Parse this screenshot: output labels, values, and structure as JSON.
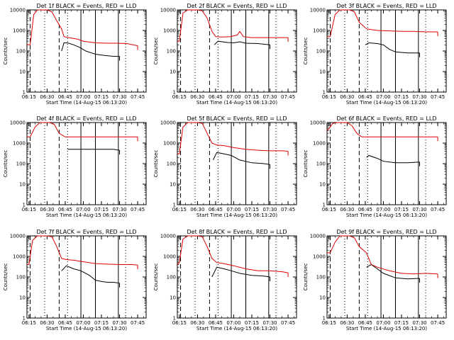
{
  "figure": {
    "x_tick_labels": [
      "06:15",
      "06:30",
      "06:45",
      "07:00",
      "07:15",
      "07:30",
      "07:45"
    ],
    "y_tick_labels": [
      "1",
      "10",
      "100",
      "1000",
      "10000"
    ],
    "ylabel": "Counts/sec",
    "xlabel": "Start Time (14-Aug-15 06:13:20)"
  },
  "colors": {
    "events": "#000000",
    "lld": "#e00000"
  },
  "chart_data": [
    {
      "type": "line",
      "title": "Det 1f BLACK = Events, RED = LLD",
      "y_scale": "log",
      "ylim": [
        1,
        10000
      ],
      "xlim": [
        "06:13:20",
        "07:52:00"
      ],
      "grid": false,
      "series": [
        {
          "name": "Events",
          "x": [
            "06:42",
            "06:44",
            "06:47",
            "06:52",
            "06:57",
            "07:02",
            "07:10",
            "07:18",
            "07:25",
            "07:30"
          ],
          "values": [
            100,
            250,
            250,
            200,
            150,
            100,
            70,
            60,
            55,
            55
          ]
        },
        {
          "name": "LLD",
          "x": [
            "06:13:20",
            "06:16",
            "06:19",
            "06:22",
            "06:26",
            "06:30",
            "06:34",
            "06:38",
            "06:42",
            "06:44",
            "06:48",
            "06:55",
            "07:00",
            "07:10",
            "07:20",
            "07:28",
            "07:36",
            "07:45"
          ],
          "values": [
            200,
            200,
            6000,
            10000,
            10000,
            10000,
            8000,
            3000,
            1200,
            500,
            450,
            380,
            300,
            250,
            240,
            240,
            230,
            180
          ]
        }
      ],
      "vlines_dashed": [
        "06:16",
        "06:40"
      ],
      "vlines_dotted": [
        "06:28",
        "06:47",
        "07:35"
      ],
      "vlines_solid": [
        "06:58",
        "07:10",
        "07:29"
      ]
    },
    {
      "type": "line",
      "title": "Det 2f BLACK = Events, RED = LLD",
      "y_scale": "log",
      "ylim": [
        1,
        10000
      ],
      "xlim": [
        "06:13:20",
        "07:52:00"
      ],
      "grid": false,
      "series": [
        {
          "name": "Events",
          "x": [
            "06:44",
            "06:47",
            "06:55",
            "07:00",
            "07:05",
            "07:10",
            "07:20",
            "07:30"
          ],
          "values": [
            200,
            300,
            260,
            250,
            280,
            240,
            230,
            200
          ]
        },
        {
          "name": "LLD",
          "x": [
            "06:13:20",
            "06:15",
            "06:18",
            "06:22",
            "06:26",
            "06:30",
            "06:34",
            "06:38",
            "06:42",
            "06:45",
            "06:50",
            "06:57",
            "07:03",
            "07:05",
            "07:08",
            "07:15",
            "07:25",
            "07:35",
            "07:45"
          ],
          "values": [
            300,
            300,
            7000,
            10000,
            10000,
            10000,
            9000,
            4000,
            900,
            500,
            480,
            500,
            600,
            900,
            500,
            450,
            450,
            450,
            450
          ]
        }
      ],
      "vlines_dashed": [
        "06:16",
        "06:40"
      ],
      "vlines_dotted": [
        "06:28",
        "06:47",
        "07:35"
      ],
      "vlines_solid": [
        "06:58",
        "07:10",
        "07:29"
      ]
    },
    {
      "type": "line",
      "title": "Det 3f BLACK = Events, RED = LLD",
      "y_scale": "log",
      "ylim": [
        1,
        10000
      ],
      "xlim": [
        "06:13:20",
        "07:52:00"
      ],
      "grid": false,
      "series": [
        {
          "name": "Events",
          "x": [
            "06:45",
            "06:48",
            "06:55",
            "07:00",
            "07:05",
            "07:10",
            "07:20",
            "07:30"
          ],
          "values": [
            200,
            250,
            230,
            200,
            120,
            90,
            80,
            80
          ]
        },
        {
          "name": "LLD",
          "x": [
            "06:13:20",
            "06:16",
            "06:20",
            "06:24",
            "06:28",
            "06:32",
            "06:36",
            "06:40",
            "06:46",
            "06:55",
            "07:05",
            "07:15",
            "07:25",
            "07:35",
            "07:45"
          ],
          "values": [
            500,
            500,
            6000,
            10000,
            10000,
            10000,
            8000,
            2500,
            1200,
            1000,
            950,
            900,
            900,
            850,
            850
          ]
        }
      ],
      "vlines_dashed": [
        "06:16",
        "06:40"
      ],
      "vlines_dotted": [
        "06:28",
        "06:47",
        "07:35"
      ],
      "vlines_solid": [
        "06:58",
        "07:10",
        "07:29"
      ]
    },
    {
      "type": "line",
      "title": "Det 4f BLACK = Events, RED = LLD",
      "y_scale": "log",
      "ylim": [
        1,
        10000
      ],
      "xlim": [
        "06:13:20",
        "07:52:00"
      ],
      "grid": false,
      "series": [
        {
          "name": "Events",
          "x": [
            "06:47",
            "06:55",
            "07:05",
            "07:15",
            "07:25",
            "07:30"
          ],
          "values": [
            500,
            500,
            500,
            500,
            500,
            450
          ]
        },
        {
          "name": "LLD",
          "x": [
            "06:13:20",
            "06:16",
            "06:20",
            "06:24",
            "06:28",
            "06:32",
            "06:36",
            "06:40",
            "06:45",
            "06:55",
            "07:10",
            "07:25",
            "07:35",
            "07:45"
          ],
          "values": [
            2000,
            2000,
            6000,
            10000,
            10000,
            10000,
            8000,
            3000,
            2000,
            2000,
            2000,
            2000,
            2000,
            2000
          ]
        }
      ],
      "vlines_dashed": [
        "06:16",
        "06:40"
      ],
      "vlines_dotted": [
        "06:28",
        "06:47",
        "07:35"
      ],
      "vlines_solid": [
        "06:58",
        "07:10",
        "07:29"
      ]
    },
    {
      "type": "line",
      "title": "Det 5f BLACK = Events, RED = LLD",
      "y_scale": "log",
      "ylim": [
        1,
        10000
      ],
      "xlim": [
        "06:13:20",
        "07:52:00"
      ],
      "grid": false,
      "series": [
        {
          "name": "Events",
          "x": [
            "06:43",
            "06:46",
            "06:52",
            "06:58",
            "07:05",
            "07:15",
            "07:25",
            "07:30"
          ],
          "values": [
            150,
            350,
            300,
            250,
            150,
            110,
            100,
            90
          ]
        },
        {
          "name": "LLD",
          "x": [
            "06:13:20",
            "06:15",
            "06:18",
            "06:22",
            "06:26",
            "06:30",
            "06:34",
            "06:38",
            "06:42",
            "06:46",
            "06:52",
            "07:00",
            "07:10",
            "07:20",
            "07:30",
            "07:40",
            "07:45"
          ],
          "values": [
            300,
            300,
            6000,
            10000,
            10000,
            10000,
            9000,
            3000,
            1000,
            800,
            750,
            600,
            500,
            450,
            420,
            420,
            400
          ]
        }
      ],
      "vlines_dashed": [
        "06:16",
        "06:40"
      ],
      "vlines_dotted": [
        "06:28",
        "06:47",
        "07:35"
      ],
      "vlines_solid": [
        "06:58",
        "07:10",
        "07:29"
      ]
    },
    {
      "type": "line",
      "title": "Det 6f BLACK = Events, RED = LLD",
      "y_scale": "log",
      "ylim": [
        1,
        10000
      ],
      "xlim": [
        "06:13:20",
        "07:52:00"
      ],
      "grid": false,
      "series": [
        {
          "name": "Events",
          "x": [
            "06:46",
            "06:48",
            "06:55",
            "07:00",
            "07:10",
            "07:20",
            "07:30"
          ],
          "values": [
            200,
            250,
            180,
            130,
            110,
            110,
            120
          ]
        },
        {
          "name": "LLD",
          "x": [
            "06:13:20",
            "06:15",
            "06:18",
            "06:22",
            "06:26",
            "06:30",
            "06:34",
            "06:38",
            "06:42",
            "06:46",
            "06:55",
            "07:10",
            "07:25",
            "07:35",
            "07:45"
          ],
          "values": [
            4000,
            5000,
            9000,
            10000,
            10000,
            10000,
            7000,
            3000,
            2000,
            2000,
            2000,
            2000,
            2000,
            2000,
            2000
          ]
        }
      ],
      "vlines_dashed": [
        "06:16",
        "06:40"
      ],
      "vlines_dotted": [
        "06:28",
        "06:47",
        "07:35"
      ],
      "vlines_solid": [
        "06:58",
        "07:10",
        "07:29"
      ]
    },
    {
      "type": "line",
      "title": "Det 7f BLACK = Events, RED = LLD",
      "y_scale": "log",
      "ylim": [
        1,
        10000
      ],
      "xlim": [
        "06:13:20",
        "07:52:00"
      ],
      "grid": false,
      "series": [
        {
          "name": "Events",
          "x": [
            "06:42",
            "06:46",
            "06:52",
            "06:58",
            "07:05",
            "07:10",
            "07:15",
            "07:20",
            "07:25",
            "07:30"
          ],
          "values": [
            200,
            350,
            250,
            200,
            120,
            70,
            60,
            55,
            55,
            50
          ]
        },
        {
          "name": "LLD",
          "x": [
            "06:13:20",
            "06:15",
            "06:18",
            "06:22",
            "06:26",
            "06:30",
            "06:34",
            "06:38",
            "06:42",
            "06:46",
            "06:52",
            "07:00",
            "07:10",
            "07:20",
            "07:30",
            "07:40",
            "07:45"
          ],
          "values": [
            400,
            400,
            6000,
            10000,
            10000,
            10000,
            9000,
            3000,
            800,
            700,
            650,
            550,
            450,
            420,
            400,
            400,
            380
          ]
        }
      ],
      "vlines_dashed": [
        "06:16",
        "06:40"
      ],
      "vlines_dotted": [
        "06:28",
        "06:47",
        "07:35"
      ],
      "vlines_solid": [
        "06:58",
        "07:10",
        "07:29"
      ]
    },
    {
      "type": "line",
      "title": "Det 8f BLACK = Events, RED = LLD",
      "y_scale": "log",
      "ylim": [
        1,
        10000
      ],
      "xlim": [
        "06:13:20",
        "07:52:00"
      ],
      "grid": false,
      "series": [
        {
          "name": "Events",
          "x": [
            "06:42",
            "06:46",
            "06:52",
            "06:58",
            "07:05",
            "07:15",
            "07:25",
            "07:30"
          ],
          "values": [
            100,
            300,
            250,
            200,
            150,
            120,
            110,
            100
          ]
        },
        {
          "name": "LLD",
          "x": [
            "06:13:20",
            "06:15",
            "06:18",
            "06:22",
            "06:26",
            "06:30",
            "06:34",
            "06:38",
            "06:42",
            "06:46",
            "06:52",
            "07:00",
            "07:10",
            "07:20",
            "07:30",
            "07:40",
            "07:45"
          ],
          "values": [
            400,
            500,
            7000,
            10000,
            10000,
            10000,
            9000,
            3000,
            800,
            500,
            450,
            350,
            250,
            200,
            200,
            180,
            160
          ]
        }
      ],
      "vlines_dashed": [
        "06:16",
        "06:40"
      ],
      "vlines_dotted": [
        "06:28",
        "06:47",
        "07:35"
      ],
      "vlines_solid": [
        "06:58",
        "07:10",
        "07:29"
      ]
    },
    {
      "type": "line",
      "title": "Det 9f BLACK = Events, RED = LLD",
      "y_scale": "log",
      "ylim": [
        1,
        10000
      ],
      "xlim": [
        "06:13:20",
        "07:52:00"
      ],
      "grid": false,
      "series": [
        {
          "name": "Events",
          "x": [
            "06:46",
            "06:50",
            "06:55",
            "07:00",
            "07:10",
            "07:20",
            "07:30"
          ],
          "values": [
            300,
            400,
            250,
            150,
            90,
            80,
            85
          ]
        },
        {
          "name": "LLD",
          "x": [
            "06:13:20",
            "06:16",
            "06:20",
            "06:24",
            "06:28",
            "06:32",
            "06:36",
            "06:40",
            "06:46",
            "06:50",
            "06:55",
            "07:05",
            "07:15",
            "07:25",
            "07:35",
            "07:45"
          ],
          "values": [
            1500,
            1500,
            5000,
            10000,
            10000,
            10000,
            8000,
            3000,
            1500,
            400,
            300,
            200,
            150,
            140,
            150,
            140
          ]
        }
      ],
      "vlines_dashed": [
        "06:16",
        "06:40"
      ],
      "vlines_dotted": [
        "06:28",
        "06:47",
        "07:35"
      ],
      "vlines_solid": [
        "06:58",
        "07:10",
        "07:29"
      ]
    }
  ]
}
